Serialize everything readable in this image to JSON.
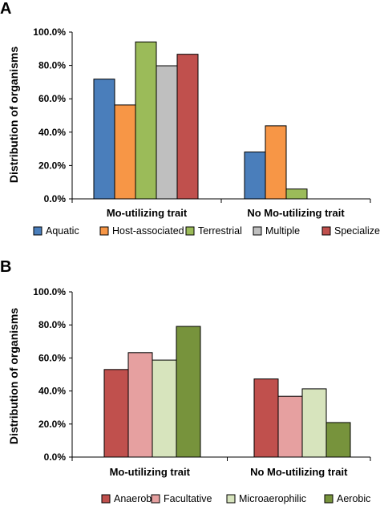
{
  "chart_data": [
    {
      "panel": "A",
      "type": "bar",
      "ylabel": "Distribution of organisms",
      "ylim": [
        0,
        100
      ],
      "yticks": [
        "0.0%",
        "20.0%",
        "40.0%",
        "60.0%",
        "80.0%",
        "100.0%"
      ],
      "categories": [
        "Mo-utilizing trait",
        "No Mo-utilizing trait"
      ],
      "legend_position": "bottom",
      "series": [
        {
          "name": "Aquatic",
          "color": "#4a7ebb",
          "values": [
            71.8,
            28.1
          ]
        },
        {
          "name": "Host-associated",
          "color": "#f79646",
          "values": [
            56.3,
            43.8
          ]
        },
        {
          "name": "Terrestrial",
          "color": "#9bbb59",
          "values": [
            94.1,
            5.9
          ]
        },
        {
          "name": "Multiple",
          "color": "#bfbfbf",
          "values": [
            79.8,
            0
          ]
        },
        {
          "name": "Specialized",
          "color": "#c0504d",
          "values": [
            86.7,
            0
          ]
        }
      ]
    },
    {
      "panel": "B",
      "type": "bar",
      "ylabel": "Distribution of organisms",
      "ylim": [
        0,
        100
      ],
      "yticks": [
        "0.0%",
        "20.0%",
        "40.0%",
        "60.0%",
        "80.0%",
        "100.0%"
      ],
      "categories": [
        "Mo-utilizing trait",
        "No Mo-utilizing trait"
      ],
      "legend_position": "bottom",
      "series": [
        {
          "name": "Anaerobic",
          "color": "#c0504d",
          "values": [
            53.0,
            47.3
          ]
        },
        {
          "name": "Facultative",
          "color": "#e6a0a0",
          "values": [
            63.2,
            36.8
          ]
        },
        {
          "name": "Microaerophilic",
          "color": "#d7e4bd",
          "values": [
            58.7,
            41.3
          ]
        },
        {
          "name": "Aerobic",
          "color": "#77933c",
          "values": [
            79.1,
            20.9
          ]
        }
      ]
    }
  ]
}
